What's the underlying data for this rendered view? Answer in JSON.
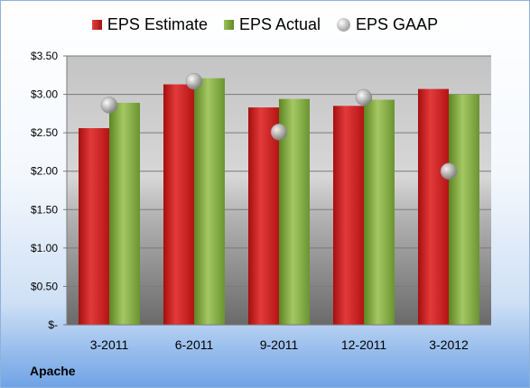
{
  "company": "Apache",
  "legend": [
    {
      "name": "EPS Estimate",
      "swatch": "est"
    },
    {
      "name": "EPS Actual",
      "swatch": "act"
    },
    {
      "name": "EPS GAAP",
      "swatch": "gaap"
    }
  ],
  "colors": {
    "estimate": "#c81e1e",
    "actual": "#7ea63c",
    "gaap": "#a8a8a8",
    "background_bottom": "#6fa3e6"
  },
  "chart_data": {
    "type": "bar",
    "title": "",
    "xlabel": "",
    "ylabel": "",
    "categories": [
      "3-2011",
      "6-2011",
      "9-2011",
      "12-2011",
      "3-2012"
    ],
    "series": [
      {
        "name": "EPS Estimate",
        "kind": "bar",
        "values": [
          2.56,
          3.13,
          2.83,
          2.85,
          3.07
        ]
      },
      {
        "name": "EPS Actual",
        "kind": "bar",
        "values": [
          2.89,
          3.21,
          2.94,
          2.93,
          3.0
        ]
      },
      {
        "name": "EPS GAAP",
        "kind": "marker",
        "values": [
          2.86,
          3.17,
          2.51,
          2.96,
          2.0
        ]
      }
    ],
    "ylim": [
      0,
      3.5
    ],
    "yticks": [
      0,
      0.5,
      1.0,
      1.5,
      2.0,
      2.5,
      3.0,
      3.5
    ],
    "ytick_labels": [
      "$-",
      "$0.50",
      "$1.00",
      "$1.50",
      "$2.00",
      "$2.50",
      "$3.00",
      "$3.50"
    ],
    "grid": true,
    "legend_position": "top"
  }
}
